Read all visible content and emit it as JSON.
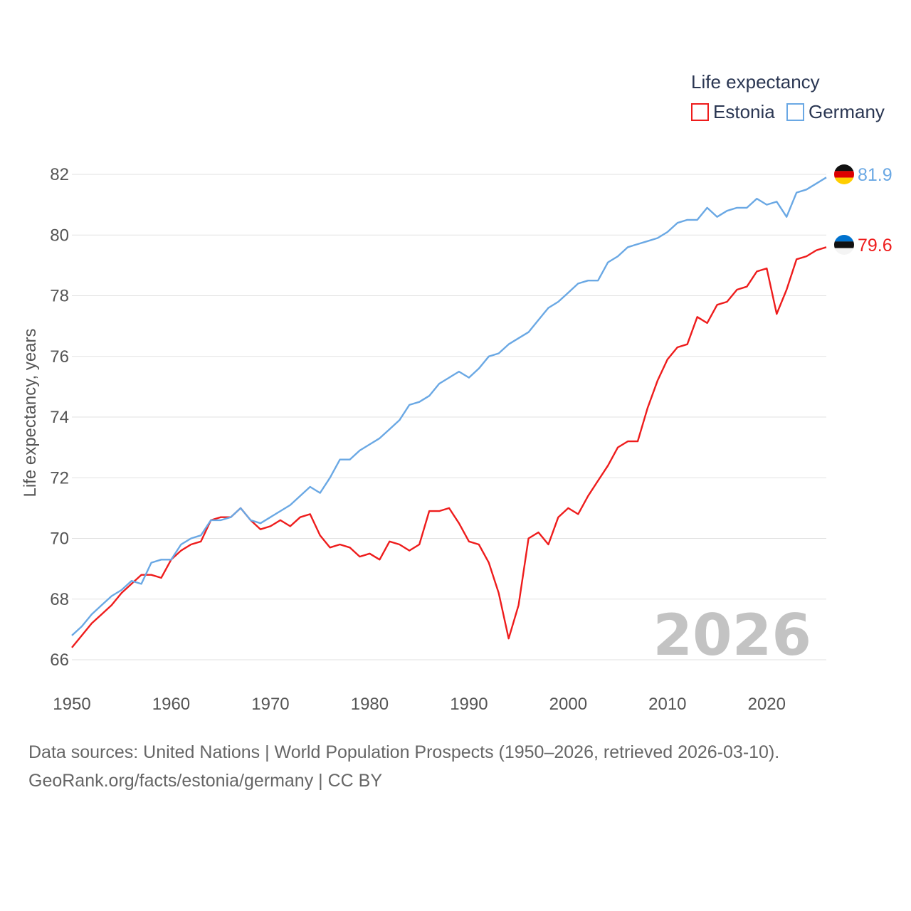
{
  "chart_data": {
    "type": "line",
    "title": "",
    "legend_title": "Life expectancy",
    "ylabel": "Life expectancy, years",
    "xlabel": "",
    "xlim": [
      1950,
      2026
    ],
    "ylim": [
      65.5,
      82.5
    ],
    "yticks": [
      66,
      68,
      70,
      72,
      74,
      76,
      78,
      80,
      82
    ],
    "xticks": [
      1950,
      1960,
      1970,
      1980,
      1990,
      2000,
      2010,
      2020
    ],
    "grid": true,
    "legend_position": "top-right",
    "watermark_year": "2026",
    "x": [
      1950,
      1951,
      1952,
      1953,
      1954,
      1955,
      1956,
      1957,
      1958,
      1959,
      1960,
      1961,
      1962,
      1963,
      1964,
      1965,
      1966,
      1967,
      1968,
      1969,
      1970,
      1971,
      1972,
      1973,
      1974,
      1975,
      1976,
      1977,
      1978,
      1979,
      1980,
      1981,
      1982,
      1983,
      1984,
      1985,
      1986,
      1987,
      1988,
      1989,
      1990,
      1991,
      1992,
      1993,
      1994,
      1995,
      1996,
      1997,
      1998,
      1999,
      2000,
      2001,
      2002,
      2003,
      2004,
      2005,
      2006,
      2007,
      2008,
      2009,
      2010,
      2011,
      2012,
      2013,
      2014,
      2015,
      2016,
      2017,
      2018,
      2019,
      2020,
      2021,
      2022,
      2023,
      2024,
      2025,
      2026
    ],
    "series": [
      {
        "name": "Estonia",
        "color": "#ee1c1c",
        "flag": "estonia-flag",
        "end_label": "79.6",
        "values": [
          66.4,
          66.8,
          67.2,
          67.5,
          67.8,
          68.2,
          68.5,
          68.8,
          68.8,
          68.7,
          69.3,
          69.6,
          69.8,
          69.9,
          70.6,
          70.7,
          70.7,
          71.0,
          70.6,
          70.3,
          70.4,
          70.6,
          70.4,
          70.7,
          70.8,
          70.1,
          69.7,
          69.8,
          69.7,
          69.4,
          69.5,
          69.3,
          69.9,
          69.8,
          69.6,
          69.8,
          70.9,
          70.9,
          71.0,
          70.5,
          69.9,
          69.8,
          69.2,
          68.2,
          66.7,
          67.8,
          70.0,
          70.2,
          69.8,
          70.7,
          71.0,
          70.8,
          71.4,
          71.9,
          72.4,
          73.0,
          73.2,
          73.2,
          74.3,
          75.2,
          75.9,
          76.3,
          76.4,
          77.3,
          77.1,
          77.7,
          77.8,
          78.2,
          78.3,
          78.8,
          78.9,
          77.4,
          78.2,
          79.2,
          79.3,
          79.5,
          79.6
        ]
      },
      {
        "name": "Germany",
        "color": "#6aa8e4",
        "flag": "germany-flag",
        "end_label": "81.9",
        "values": [
          66.8,
          67.1,
          67.5,
          67.8,
          68.1,
          68.3,
          68.6,
          68.5,
          69.2,
          69.3,
          69.3,
          69.8,
          70.0,
          70.1,
          70.6,
          70.6,
          70.7,
          71.0,
          70.6,
          70.5,
          70.7,
          70.9,
          71.1,
          71.4,
          71.7,
          71.5,
          72.0,
          72.6,
          72.6,
          72.9,
          73.1,
          73.3,
          73.6,
          73.9,
          74.4,
          74.5,
          74.7,
          75.1,
          75.3,
          75.5,
          75.3,
          75.6,
          76.0,
          76.1,
          76.4,
          76.6,
          76.8,
          77.2,
          77.6,
          77.8,
          78.1,
          78.4,
          78.5,
          78.5,
          79.1,
          79.3,
          79.6,
          79.7,
          79.8,
          79.9,
          80.1,
          80.4,
          80.5,
          80.5,
          80.9,
          80.6,
          80.8,
          80.9,
          80.9,
          81.2,
          81.0,
          81.1,
          80.6,
          81.4,
          81.5,
          81.7,
          81.9
        ]
      }
    ]
  },
  "footer": {
    "source_line": "Data sources: United Nations | World Population Prospects (1950–2026, retrieved 2026-03-10).",
    "credit_line": "GeoRank.org/facts/estonia/germany | CC BY"
  }
}
